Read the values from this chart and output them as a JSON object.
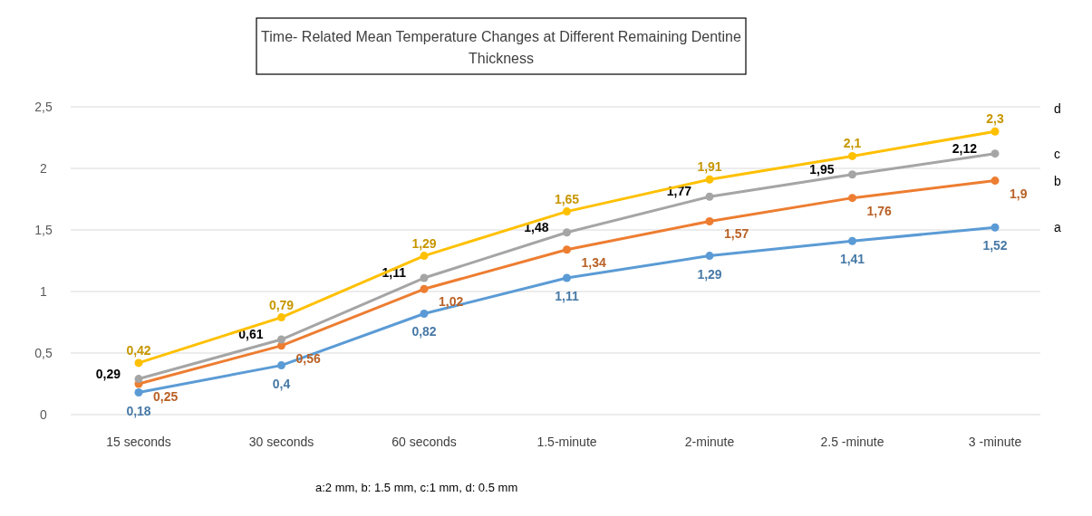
{
  "chart_data": {
    "type": "line",
    "title": "Time- Related Mean Temperature Changes at Different Remaining Dentine Thickness",
    "categories": [
      "15 seconds",
      "30 seconds",
      "60 seconds",
      "1.5-minute",
      "2-minute",
      "2.5 -minute",
      "3 -minute"
    ],
    "series": [
      {
        "name": "a",
        "color": "#5b9bd5",
        "values": [
          0.18,
          0.4,
          0.82,
          1.11,
          1.29,
          1.41,
          1.52
        ],
        "value_labels": [
          "0,18",
          "0,4",
          "0,82",
          "1,11",
          "1,29",
          "1,41",
          "1,52"
        ]
      },
      {
        "name": "b",
        "color": "#ed7d31",
        "values": [
          0.25,
          0.56,
          1.02,
          1.34,
          1.57,
          1.76,
          1.9
        ],
        "value_labels": [
          "0,25",
          "0,56",
          "1,02",
          "1,34",
          "1,57",
          "1,76",
          "1,9"
        ]
      },
      {
        "name": "c",
        "color": "#a5a5a5",
        "values": [
          0.29,
          0.61,
          1.11,
          1.48,
          1.77,
          1.95,
          2.12
        ],
        "value_labels": [
          "0,29",
          "0,61",
          "1,11",
          "1,48",
          "1,77",
          "1,95",
          "2,12"
        ]
      },
      {
        "name": "d",
        "color": "#ffc000",
        "values": [
          0.42,
          0.79,
          1.29,
          1.65,
          1.91,
          2.1,
          2.3
        ],
        "value_labels": [
          "0,42",
          "0,79",
          "1,29",
          "1,65",
          "1,91",
          "2,1",
          "2,3"
        ]
      }
    ],
    "ylim": [
      0,
      2.5
    ],
    "yticks": [
      0,
      {
        "value": 0.5,
        "label": "0,5"
      },
      1,
      {
        "value": 1.5,
        "label": "1,5"
      },
      2,
      {
        "value": 2.5,
        "label": "2,5"
      }
    ],
    "grid": "y",
    "marker": "circle",
    "line_style": "solid",
    "annotations": [
      "a:2 mm, b: 1.5 mm, c:1 mm, d: 0.5 mm"
    ]
  }
}
